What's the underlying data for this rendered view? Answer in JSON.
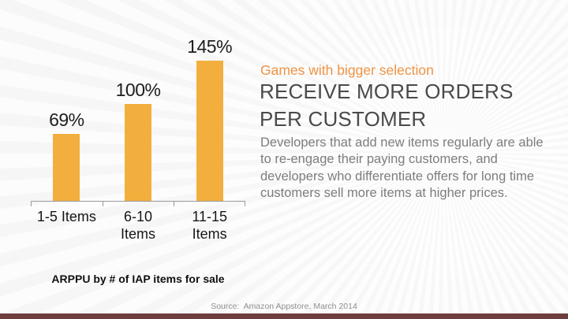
{
  "slide": {
    "background_color": "#fcfcfc",
    "footer_bar_color": "#6e3e3e",
    "caption": "ARPPU by # of IAP items for sale",
    "source": "Source:  Amazon Appstore, March 2014"
  },
  "chart_data": {
    "type": "bar",
    "title": "ARPPU by # of IAP items for sale",
    "categories": [
      "1-5 Items",
      "6-10 Items",
      "11-15 Items"
    ],
    "category_lines": [
      [
        "1-5 Items"
      ],
      [
        "6-10",
        "Items"
      ],
      [
        "11-15",
        "Items"
      ]
    ],
    "values": [
      69,
      100,
      145
    ],
    "value_labels": [
      "69%",
      "100%",
      "145%"
    ],
    "unit": "%",
    "ylim": [
      0,
      160
    ],
    "grid": false,
    "legend": false,
    "bar_color": "#F2AF3D",
    "axis_color": "#9a9a9a",
    "label_color": "#1e1e1e"
  },
  "text_panel": {
    "eyebrow": "Games with bigger selection",
    "eyebrow_color": "#EE9444",
    "heading_lines": [
      "RECEIVE MORE ORDERS",
      "PER CUSTOMER"
    ],
    "heading_color": "#4a4a4a",
    "body_lines": [
      "Developers that add new items regularly are able",
      "to re-engage their paying customers, and",
      "developers who differentiate offers for long time",
      "customers sell more items at higher prices."
    ],
    "body_color": "#7d7d7d"
  }
}
